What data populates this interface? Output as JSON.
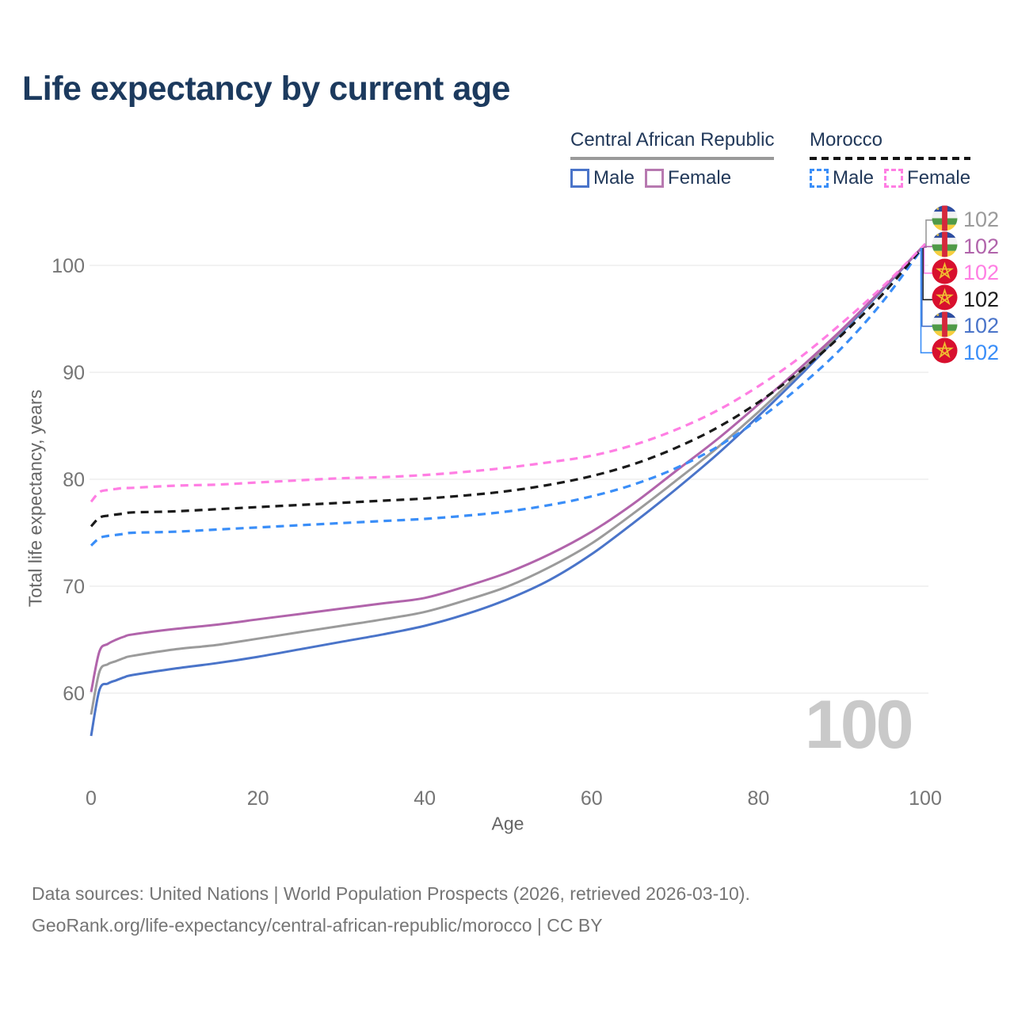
{
  "title": "Life expectancy by current age",
  "watermark": "100",
  "legend": {
    "groups": [
      {
        "name": "Central African Republic",
        "underline_color": "#9a9a9a",
        "dashed_underline": false,
        "items": [
          {
            "label": "Male",
            "color": "#4a74c9",
            "dashed": false
          },
          {
            "label": "Female",
            "color": "#b779b0",
            "dashed": false
          }
        ]
      },
      {
        "name": "Morocco",
        "underline_color": "#141414",
        "dashed_underline": true,
        "items": [
          {
            "label": "Male",
            "color": "#3a8ef8",
            "dashed": true
          },
          {
            "label": "Female",
            "color": "#ff7ee3",
            "dashed": true
          }
        ]
      }
    ]
  },
  "chart_data": {
    "type": "line",
    "title": "Life expectancy by current age",
    "xlabel": "Age",
    "ylabel": "Total life expectancy, years",
    "x_ticks": [
      0,
      20,
      40,
      60,
      80,
      100
    ],
    "y_ticks": [
      60,
      70,
      80,
      90,
      100
    ],
    "xlim": [
      0,
      100
    ],
    "ylim": [
      55,
      103
    ],
    "grid": true,
    "legend_position": "top-right",
    "x": [
      0,
      1,
      2,
      3,
      4,
      5,
      10,
      15,
      20,
      25,
      30,
      35,
      40,
      45,
      50,
      55,
      60,
      65,
      70,
      75,
      80,
      85,
      90,
      95,
      100
    ],
    "series": [
      {
        "name": "Central African Republic Male",
        "country": "Central African Republic",
        "sex": "Male",
        "color": "#4a74c9",
        "dashed": false,
        "values": [
          56.0,
          60.3,
          60.9,
          61.2,
          61.5,
          61.7,
          62.3,
          62.8,
          63.4,
          64.1,
          64.8,
          65.5,
          66.3,
          67.4,
          68.8,
          70.6,
          73.0,
          75.9,
          79.0,
          82.3,
          85.9,
          89.7,
          93.7,
          97.8,
          102
        ]
      },
      {
        "name": "Central African Republic Both sexes",
        "country": "Central African Republic",
        "sex": "Both",
        "color": "#9b9b9b",
        "dashed": false,
        "values": [
          58.0,
          62.0,
          62.7,
          63.0,
          63.3,
          63.5,
          64.1,
          64.5,
          65.1,
          65.7,
          66.3,
          66.9,
          67.6,
          68.7,
          70.0,
          71.8,
          74.0,
          76.8,
          79.8,
          82.9,
          86.3,
          90.0,
          93.9,
          97.9,
          102
        ]
      },
      {
        "name": "Central African Republic Female",
        "country": "Central African Republic",
        "sex": "Female",
        "color": "#b164ab",
        "dashed": false,
        "values": [
          60.1,
          63.9,
          64.6,
          65.0,
          65.3,
          65.5,
          66.0,
          66.4,
          66.9,
          67.4,
          67.9,
          68.4,
          68.9,
          70.0,
          71.3,
          73.0,
          75.1,
          77.7,
          80.7,
          83.7,
          87.0,
          90.4,
          94.0,
          97.9,
          102
        ]
      },
      {
        "name": "Morocco Male",
        "country": "Morocco",
        "sex": "Male",
        "color": "#3a8ef8",
        "dashed": true,
        "values": [
          73.8,
          74.5,
          74.7,
          74.8,
          74.9,
          75.0,
          75.1,
          75.3,
          75.5,
          75.7,
          75.9,
          76.1,
          76.3,
          76.6,
          77.0,
          77.6,
          78.4,
          79.5,
          81.0,
          83.0,
          85.6,
          88.7,
          92.3,
          96.7,
          102
        ]
      },
      {
        "name": "Morocco Both sexes",
        "country": "Morocco",
        "sex": "Both",
        "color": "#1a1a1a",
        "dashed": true,
        "values": [
          75.6,
          76.4,
          76.6,
          76.7,
          76.8,
          76.9,
          77.0,
          77.2,
          77.4,
          77.6,
          77.8,
          78.0,
          78.2,
          78.5,
          78.9,
          79.5,
          80.3,
          81.4,
          82.9,
          84.8,
          87.2,
          90.1,
          93.5,
          97.4,
          102
        ]
      },
      {
        "name": "Morocco Female",
        "country": "Morocco",
        "sex": "Female",
        "color": "#ff7ee3",
        "dashed": true,
        "values": [
          77.9,
          78.8,
          79.0,
          79.1,
          79.2,
          79.2,
          79.4,
          79.5,
          79.7,
          79.9,
          80.1,
          80.2,
          80.4,
          80.7,
          81.1,
          81.6,
          82.2,
          83.2,
          84.6,
          86.4,
          88.7,
          91.4,
          94.6,
          98.1,
          102
        ]
      }
    ],
    "end_labels": [
      {
        "value": "102",
        "color": "#9a9a9a",
        "icon": "central-african-republic-flag-icon",
        "series": "Central African Republic Both sexes"
      },
      {
        "value": "102",
        "color": "#b164ab",
        "icon": "central-african-republic-flag-icon",
        "series": "Central African Republic Female"
      },
      {
        "value": "102",
        "color": "#ff7ee3",
        "icon": "morocco-flag-icon",
        "series": "Morocco Female"
      },
      {
        "value": "102",
        "color": "#1d1d1d",
        "icon": "morocco-flag-icon",
        "series": "Morocco Both sexes"
      },
      {
        "value": "102",
        "color": "#4a74c9",
        "icon": "central-african-republic-flag-icon",
        "series": "Central African Republic Male"
      },
      {
        "value": "102",
        "color": "#3a8ef8",
        "icon": "morocco-flag-icon",
        "series": "Morocco Male"
      }
    ]
  },
  "footer": {
    "line1": "Data sources: United Nations | World Population Prospects (2026, retrieved 2026-03-10).",
    "line2": "GeoRank.org/life-expectancy/central-african-republic/morocco | CC BY"
  }
}
